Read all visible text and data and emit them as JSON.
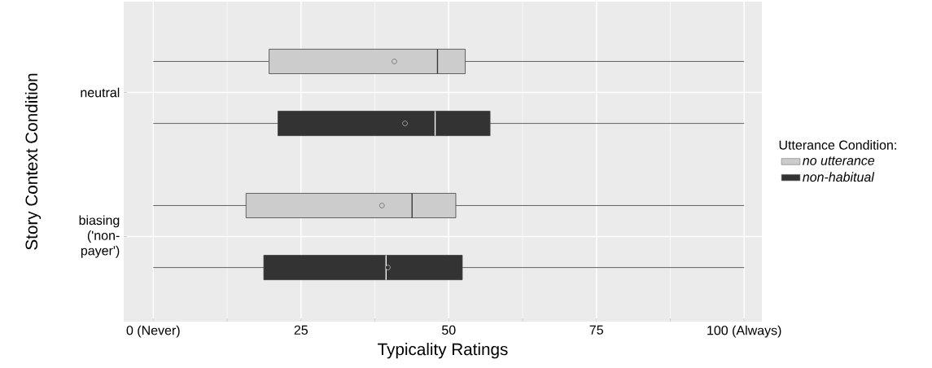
{
  "chart_data": {
    "type": "box",
    "orientation": "horizontal",
    "xlabel": "Typicality Ratings",
    "ylabel": "Story Context Condition",
    "legend_title": "Utterance Condition:",
    "categories": [
      "neutral",
      "biasing ('non-payer')"
    ],
    "xlim": [
      -5,
      103
    ],
    "xticks": [
      {
        "value": 0,
        "label": "0 (Never)"
      },
      25,
      50,
      75,
      {
        "value": 100,
        "label": "100 (Always)"
      }
    ],
    "grid": true,
    "legend": "right",
    "series": [
      {
        "name": "*no utterance*",
        "color": "#cccccc",
        "boxes": [
          {
            "low": 0,
            "q1": 19.6,
            "median": 48.1,
            "q3": 52.8,
            "high": 100,
            "mean": 40.8
          },
          {
            "low": 0,
            "q1": 15.7,
            "median": 43.8,
            "q3": 51.2,
            "high": 100,
            "mean": 38.7
          }
        ]
      },
      {
        "name": "*non-habitual*",
        "color": "#333333",
        "boxes": [
          {
            "low": 0,
            "q1": 21.1,
            "median": 47.7,
            "q3": 57.0,
            "high": 100,
            "mean": 42.6
          },
          {
            "low": 0,
            "q1": 18.7,
            "median": 39.4,
            "q3": 52.3,
            "high": 100,
            "mean": 39.7
          }
        ]
      }
    ]
  }
}
